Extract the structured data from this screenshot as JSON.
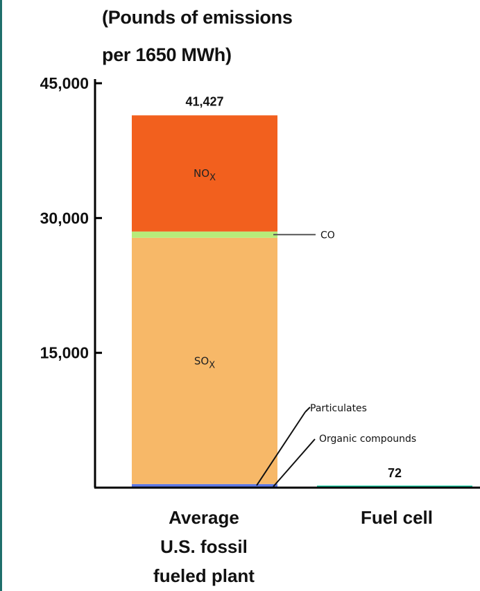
{
  "chart_data": {
    "type": "bar",
    "stacked": true,
    "ylabel_lines": [
      "(Pounds of emissions",
      "per 1650 MWh)"
    ],
    "ylim": [
      0,
      45000
    ],
    "yticks": [
      {
        "value": 15000,
        "label": "15,000"
      },
      {
        "value": 30000,
        "label": "30,000"
      },
      {
        "value": 45000,
        "label": "45,000"
      }
    ],
    "categories": [
      {
        "key": "fossil",
        "label_lines": [
          "Average",
          "U.S. fossil",
          "fueled plant"
        ]
      },
      {
        "key": "fuelcell",
        "label_lines": [
          "Fuel cell"
        ]
      }
    ],
    "series": [
      {
        "name": "Organic compounds",
        "values": [
          100,
          0
        ],
        "color": "#c4a8d8"
      },
      {
        "name": "Particulates",
        "values": [
          300,
          0
        ],
        "color": "#5c78e6"
      },
      {
        "name": "SO",
        "subscript": "X",
        "values": [
          27400,
          0
        ],
        "color": "#f7b868"
      },
      {
        "name": "CO",
        "values": [
          700,
          0
        ],
        "color": "#b7ec7a"
      },
      {
        "name": "NO",
        "subscript": "X",
        "values": [
          12927,
          0
        ],
        "color": "#f2601e"
      },
      {
        "name": "Fuel cell total",
        "values": [
          0,
          72
        ],
        "color": "#1fc8a0"
      }
    ],
    "totals": [
      {
        "value": 41427,
        "label": "41,427"
      },
      {
        "value": 72,
        "label": "72"
      }
    ]
  }
}
